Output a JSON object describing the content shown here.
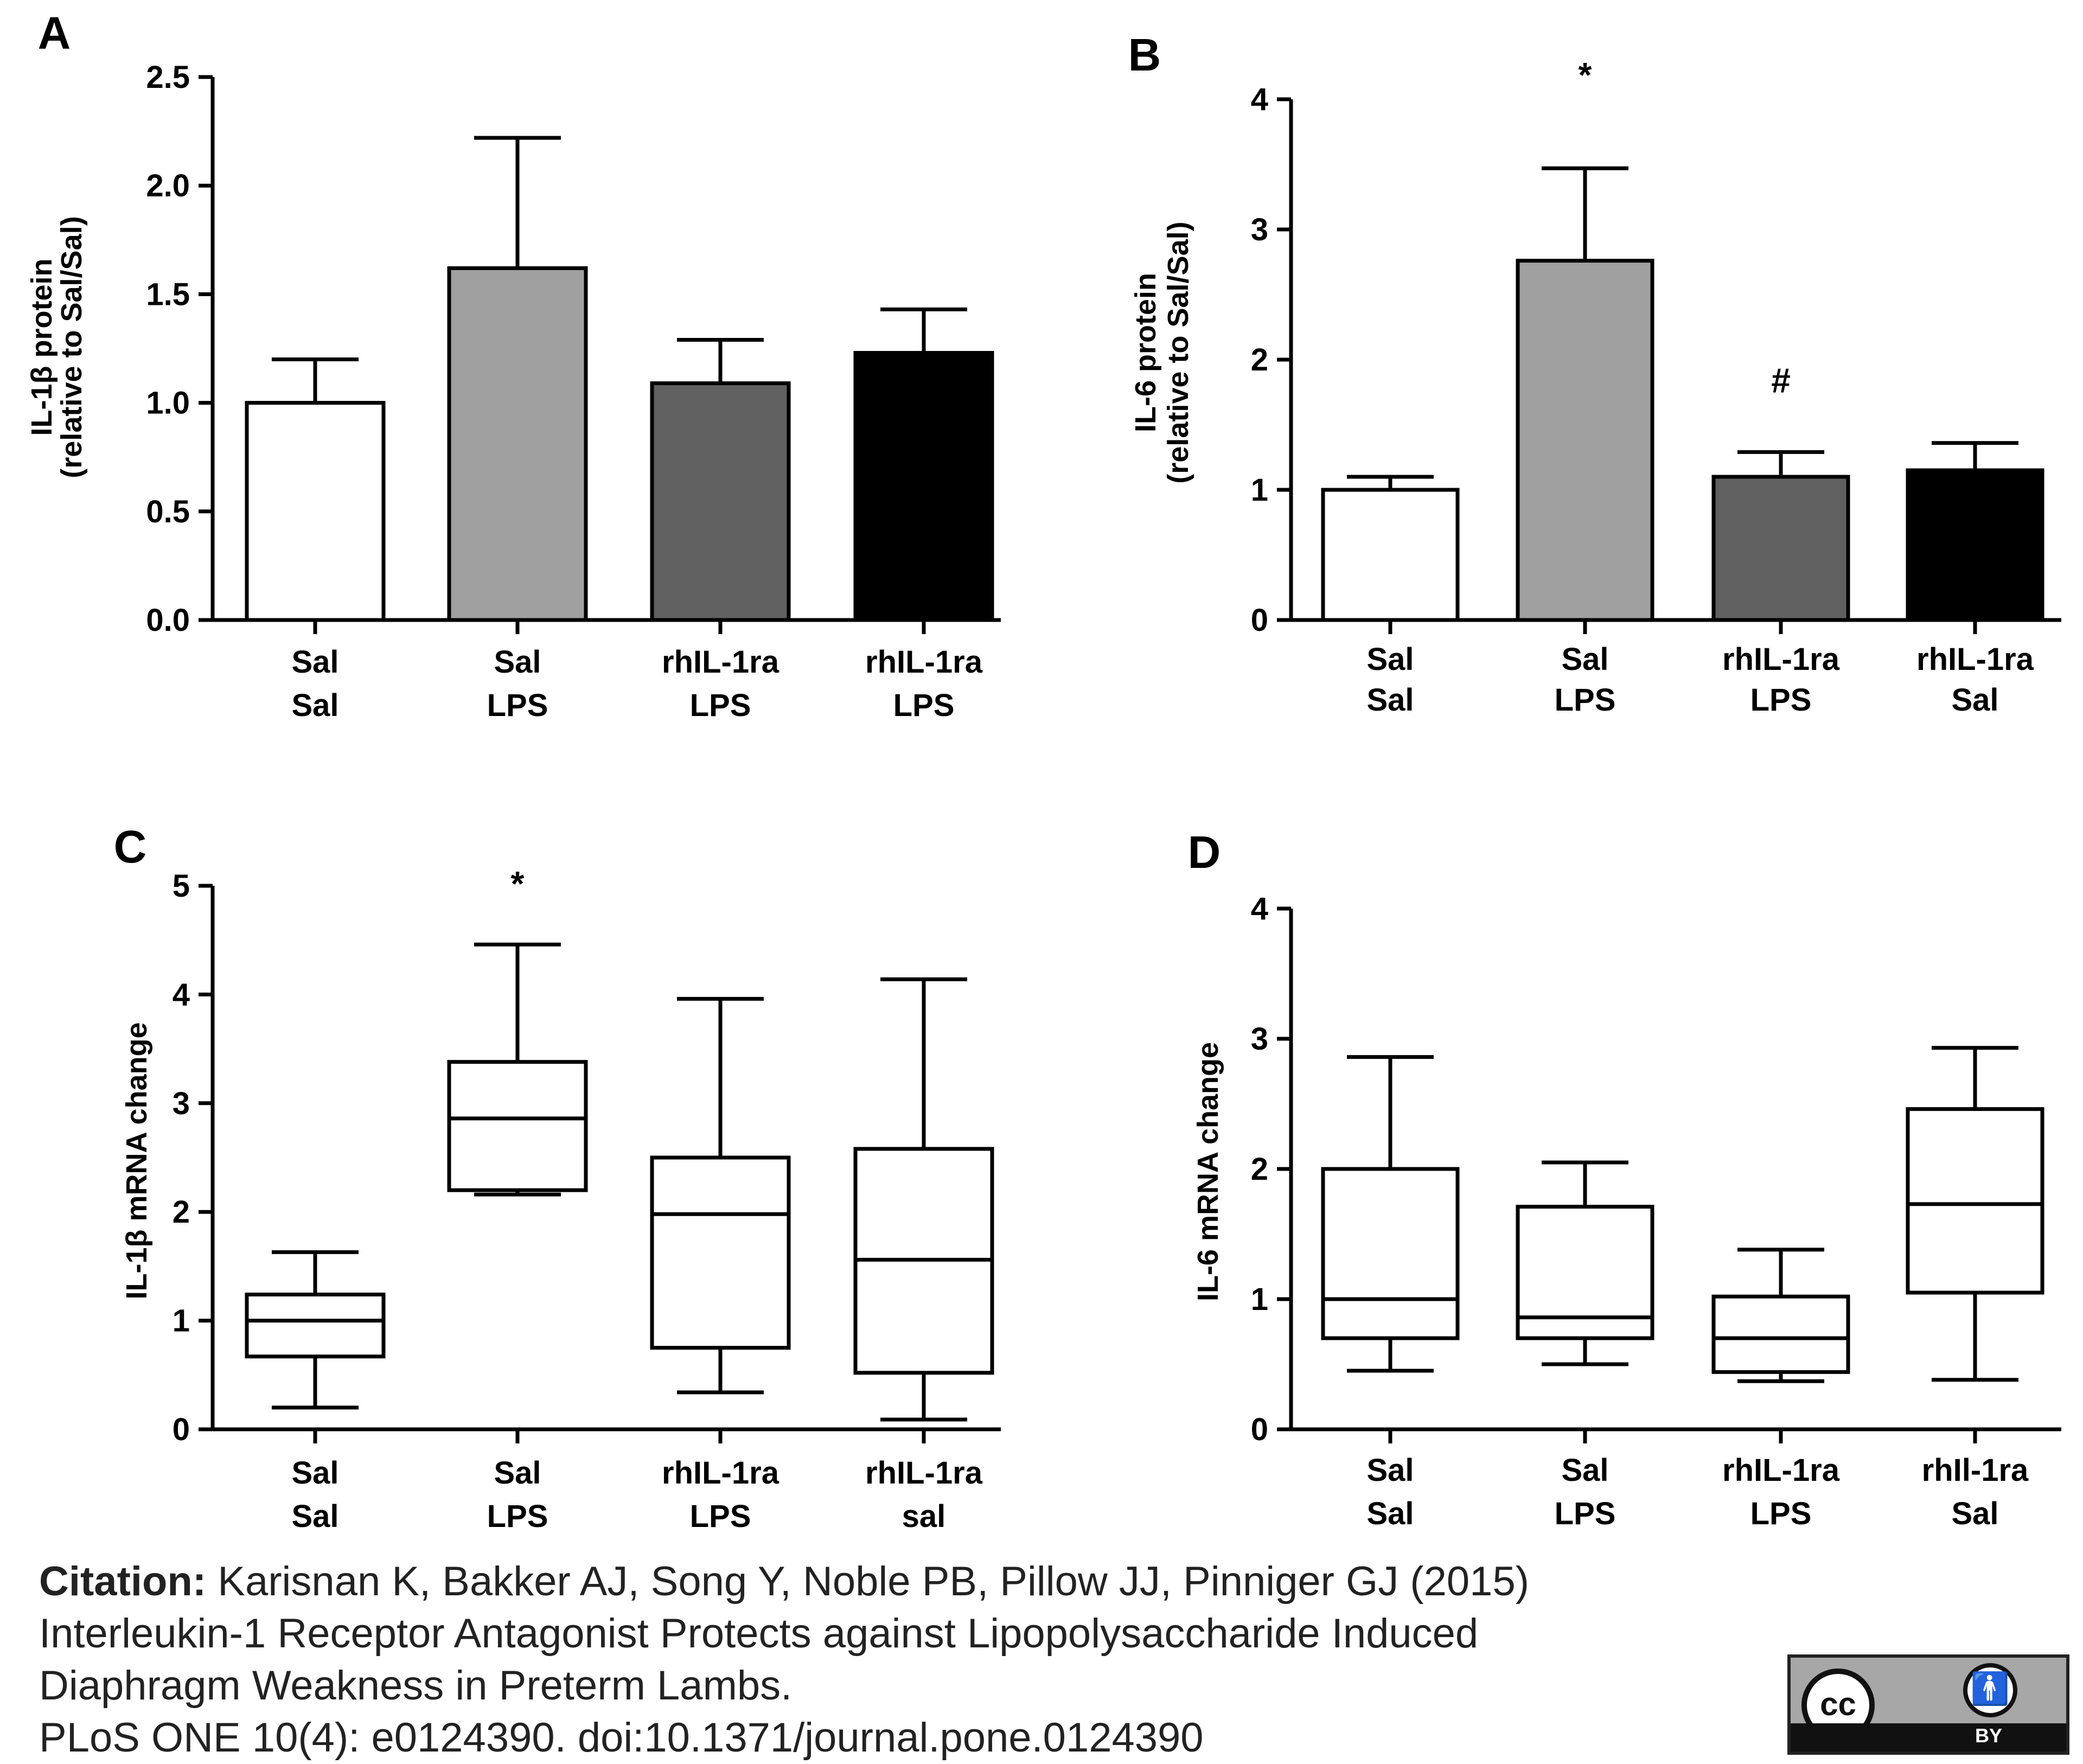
{
  "chart_data": [
    {
      "panel": "A",
      "type": "bar",
      "ylabel_line1": "IL-1β protein",
      "ylabel_line2": "(relative to Sal/Sal)",
      "ylim": [
        0,
        2.5
      ],
      "yticks": [
        "0.0",
        "0.5",
        "1.0",
        "1.5",
        "2.0",
        "2.5"
      ],
      "categories": [
        [
          "Sal",
          "Sal"
        ],
        [
          "Sal",
          "LPS"
        ],
        [
          "rhIL-1ra",
          "LPS"
        ],
        [
          "rhIL-1ra",
          "LPS"
        ]
      ],
      "values": [
        1.0,
        1.62,
        1.09,
        1.23
      ],
      "errors": [
        0.2,
        0.6,
        0.2,
        0.2
      ],
      "colors": [
        "#ffffff",
        "#a0a0a0",
        "#606060",
        "#000000"
      ],
      "annotations": [
        "",
        "",
        "",
        ""
      ]
    },
    {
      "panel": "B",
      "type": "bar",
      "ylabel_line1": "IL-6 protein",
      "ylabel_line2": "(relative to Sal/Sal)",
      "ylim": [
        0,
        4
      ],
      "yticks": [
        "0",
        "1",
        "2",
        "3",
        "4"
      ],
      "categories": [
        [
          "Sal",
          "Sal"
        ],
        [
          "Sal",
          "LPS"
        ],
        [
          "rhIL-1ra",
          "LPS"
        ],
        [
          "rhIL-1ra",
          "Sal"
        ]
      ],
      "values": [
        1.0,
        2.76,
        1.1,
        1.15
      ],
      "errors": [
        0.1,
        0.71,
        0.19,
        0.21
      ],
      "colors": [
        "#ffffff",
        "#a0a0a0",
        "#606060",
        "#000000"
      ],
      "annotations": [
        "",
        "*",
        "#",
        ""
      ]
    },
    {
      "panel": "C",
      "type": "box",
      "ylabel_line1": "IL-1β mRNA change",
      "ylabel_line2": "",
      "ylim": [
        0,
        5
      ],
      "yticks": [
        "0",
        "1",
        "2",
        "3",
        "4",
        "5"
      ],
      "categories": [
        [
          "Sal",
          "Sal"
        ],
        [
          "Sal",
          "LPS"
        ],
        [
          "rhIL-1ra",
          "LPS"
        ],
        [
          "rhIL-1ra",
          "sal"
        ]
      ],
      "boxes": [
        {
          "min": 0.2,
          "q1": 0.67,
          "median": 1.0,
          "q3": 1.24,
          "max": 1.63
        },
        {
          "min": 2.16,
          "q1": 2.2,
          "median": 2.86,
          "q3": 3.38,
          "max": 4.46
        },
        {
          "min": 0.34,
          "q1": 0.75,
          "median": 1.98,
          "q3": 2.5,
          "max": 3.96
        },
        {
          "min": 0.09,
          "q1": 0.52,
          "median": 1.56,
          "q3": 2.58,
          "max": 4.14
        }
      ],
      "annotations": [
        "",
        "*",
        "",
        ""
      ]
    },
    {
      "panel": "D",
      "type": "box",
      "ylabel_line1": "IL-6 mRNA change",
      "ylabel_line2": "",
      "ylim": [
        0,
        4
      ],
      "yticks": [
        "0",
        "1",
        "2",
        "3",
        "4"
      ],
      "categories": [
        [
          "Sal",
          "Sal"
        ],
        [
          "Sal",
          "LPS"
        ],
        [
          "rhIL-1ra",
          "LPS"
        ],
        [
          "rhIl-1ra",
          "Sal"
        ]
      ],
      "boxes": [
        {
          "min": 0.45,
          "q1": 0.7,
          "median": 1.0,
          "q3": 2.0,
          "max": 2.86
        },
        {
          "min": 0.5,
          "q1": 0.7,
          "median": 0.86,
          "q3": 1.71,
          "max": 2.05
        },
        {
          "min": 0.37,
          "q1": 0.44,
          "median": 0.7,
          "q3": 1.02,
          "max": 1.38
        },
        {
          "min": 0.38,
          "q1": 1.05,
          "median": 1.73,
          "q3": 2.46,
          "max": 2.93
        }
      ],
      "annotations": [
        "",
        "",
        "",
        ""
      ]
    }
  ],
  "citation": {
    "lead": "Citation:",
    "line1": " Karisnan K, Bakker AJ, Song Y, Noble PB, Pillow JJ, Pinniger GJ (2015)",
    "line2": "Interleukin-1 Receptor Antagonist Protects against Lipopolysaccharide Induced",
    "line3": "Diaphragm Weakness in Preterm Lambs.",
    "line4": "PLoS ONE 10(4): e0124390. doi:10.1371/journal.pone.0124390"
  },
  "license_badge": {
    "cc_text": "cc",
    "by_icon": "person-icon",
    "by_text": "BY"
  }
}
